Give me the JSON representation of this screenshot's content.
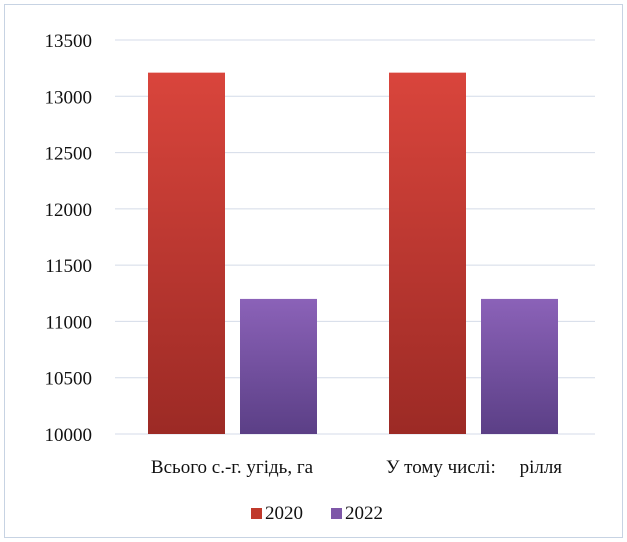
{
  "chart_data": {
    "type": "bar",
    "categories": [
      "Всього с.-г. угідь, га",
      "У тому числі:     рілля"
    ],
    "series": [
      {
        "name": "2020",
        "values": [
          13210,
          13210
        ],
        "color": "#c0392b"
      },
      {
        "name": "2022",
        "values": [
          11200,
          11200
        ],
        "color": "#7e57a8"
      }
    ],
    "ylim": [
      10000,
      13500
    ],
    "yticks": [
      10000,
      10500,
      11000,
      11500,
      12000,
      12500,
      13000,
      13500
    ],
    "grid": true,
    "legend": "bottom"
  }
}
